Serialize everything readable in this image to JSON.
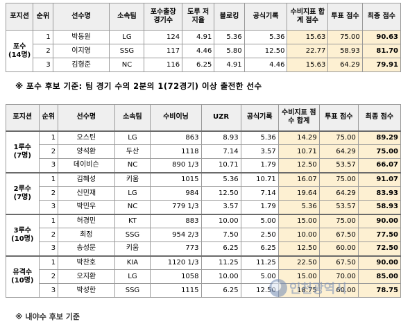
{
  "table1": {
    "headers": [
      "포지션",
      "순위",
      "선수명",
      "소속팀",
      "포수출장 경기수",
      "도루 저지율",
      "블로킹",
      "공식기록",
      "수비지표 합계 점수",
      "투표 점수",
      "최종 점수"
    ],
    "position": "포수",
    "position_count": "(14명)",
    "rows": [
      [
        "1",
        "박동원",
        "LG",
        "124",
        "4.91",
        "5.36",
        "5.36",
        "15.63",
        "75.00",
        "90.63"
      ],
      [
        "2",
        "이지영",
        "SSG",
        "117",
        "4.46",
        "5.80",
        "12.50",
        "22.77",
        "58.93",
        "81.70"
      ],
      [
        "3",
        "김형준",
        "NC",
        "116",
        "6.25",
        "4.91",
        "4.46",
        "15.63",
        "64.29",
        "79.91"
      ]
    ]
  },
  "note": "※ 포수 후보 기준: 팀 경기 수의 2분의 1(72경기) 이상 출전한 선수",
  "table2": {
    "headers": [
      "포지션",
      "순위",
      "선수명",
      "소속팀",
      "수비이닝",
      "UZR",
      "공식기록",
      "수비지표 점수 합계",
      "투표 점수",
      "최종 점수"
    ],
    "groups": [
      {
        "position": "1루수",
        "count": "(7명)",
        "rows": [
          [
            "1",
            "오스틴",
            "LG",
            "863",
            "8.93",
            "5.36",
            "14.29",
            "75.00",
            "89.29"
          ],
          [
            "2",
            "양석환",
            "두산",
            "1118",
            "7.14",
            "3.57",
            "10.71",
            "64.29",
            "75.00"
          ],
          [
            "3",
            "데이비슨",
            "NC",
            "890 1/3",
            "10.71",
            "1.79",
            "12.50",
            "53.57",
            "66.07"
          ]
        ]
      },
      {
        "position": "2루수",
        "count": "(7명)",
        "rows": [
          [
            "1",
            "김혜성",
            "키움",
            "1015",
            "5.36",
            "10.71",
            "16.07",
            "75.00",
            "91.07"
          ],
          [
            "2",
            "신민재",
            "LG",
            "984",
            "12.50",
            "7.14",
            "19.64",
            "64.29",
            "83.93"
          ],
          [
            "3",
            "박민우",
            "NC",
            "779 1/3",
            "3.57",
            "1.79",
            "5.36",
            "53.57",
            "58.93"
          ]
        ]
      },
      {
        "position": "3루수",
        "count": "(10명)",
        "rows": [
          [
            "1",
            "허경민",
            "KT",
            "883",
            "10.00",
            "5.00",
            "15.00",
            "75.00",
            "90.00"
          ],
          [
            "2",
            "최정",
            "SSG",
            "954 2/3",
            "7.50",
            "2.50",
            "10.00",
            "67.50",
            "77.50"
          ],
          [
            "3",
            "송성문",
            "키움",
            "773",
            "6.25",
            "6.25",
            "12.50",
            "60.00",
            "72.50"
          ]
        ]
      },
      {
        "position": "유격수",
        "count": "(10명)",
        "rows": [
          [
            "1",
            "박찬호",
            "KIA",
            "1120 1/3",
            "11.25",
            "11.25",
            "22.50",
            "67.50",
            "90.00"
          ],
          [
            "2",
            "오지환",
            "LG",
            "1058",
            "10.00",
            "5.00",
            "15.00",
            "70.00",
            "85.00"
          ],
          [
            "3",
            "박성한",
            "SSG",
            "1115",
            "6.25",
            "12.50",
            "18.75",
            "60.00",
            "78.75"
          ]
        ]
      }
    ]
  },
  "footer_text": "※ 내야수 후보 기준",
  "watermark": "인천광역시",
  "colors": {
    "score_bg": "#fdf0d2",
    "header_bg": "#efefef",
    "border": "#9a9a9a"
  }
}
